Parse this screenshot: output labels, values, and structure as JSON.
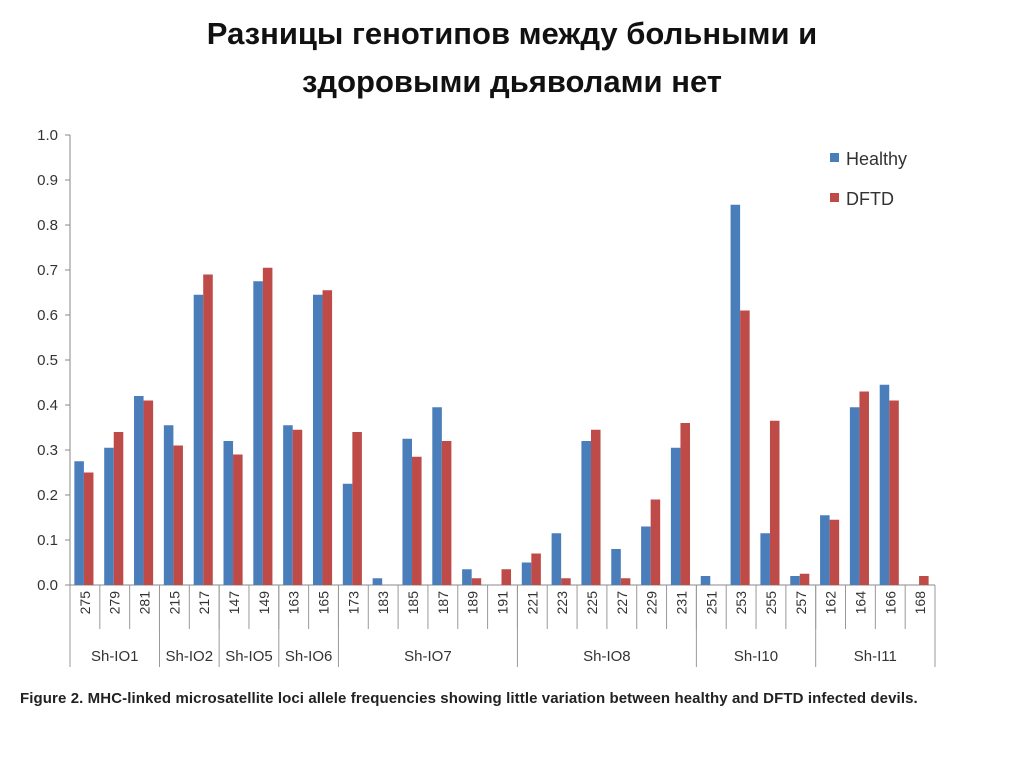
{
  "title_lines": [
    "Разницы генотипов между больными и",
    "здоровыми дьяволами нет"
  ],
  "caption": "Figure 2. MHC-linked microsatellite loci allele frequencies showing little variation between healthy and DFTD infected devils.",
  "chart_data": {
    "type": "bar",
    "categories": [
      "275",
      "279",
      "281",
      "215",
      "217",
      "147",
      "149",
      "163",
      "165",
      "173",
      "183",
      "185",
      "187",
      "189",
      "191",
      "221",
      "223",
      "225",
      "227",
      "229",
      "231",
      "251",
      "253",
      "255",
      "257",
      "162",
      "164",
      "166",
      "168"
    ],
    "groups": [
      {
        "label": "Sh-IO1",
        "count": 3
      },
      {
        "label": "Sh-IO2",
        "count": 2
      },
      {
        "label": "Sh-IO5",
        "count": 2
      },
      {
        "label": "Sh-IO6",
        "count": 2
      },
      {
        "label": "Sh-IO7",
        "count": 6
      },
      {
        "label": "Sh-IO8",
        "count": 6
      },
      {
        "label": "Sh-I10",
        "count": 4
      },
      {
        "label": "Sh-I11",
        "count": 4
      }
    ],
    "series": [
      {
        "name": "Healthy",
        "color": "#4a7ebb",
        "values": [
          0.275,
          0.305,
          0.42,
          0.355,
          0.645,
          0.32,
          0.675,
          0.355,
          0.645,
          0.225,
          0.015,
          0.325,
          0.395,
          0.035,
          0,
          0.05,
          0.115,
          0.32,
          0.08,
          0.13,
          0.305,
          0.02,
          0.845,
          0.115,
          0.02,
          0.155,
          0.395,
          0.445,
          0
        ]
      },
      {
        "name": "DFTD",
        "color": "#be4b48",
        "values": [
          0.25,
          0.34,
          0.41,
          0.31,
          0.69,
          0.29,
          0.705,
          0.345,
          0.655,
          0.34,
          0,
          0.285,
          0.32,
          0.015,
          0.035,
          0.07,
          0.015,
          0.345,
          0.015,
          0.19,
          0.36,
          0,
          0.61,
          0.365,
          0.025,
          0.145,
          0.43,
          0.41,
          0.02
        ]
      }
    ],
    "ylim": [
      0,
      1.0
    ],
    "yticks": [
      "0.0",
      "0.1",
      "0.2",
      "0.3",
      "0.4",
      "0.5",
      "0.6",
      "0.7",
      "0.8",
      "0.9",
      "1.0"
    ],
    "legend_position": "top-right",
    "grid": false
  }
}
